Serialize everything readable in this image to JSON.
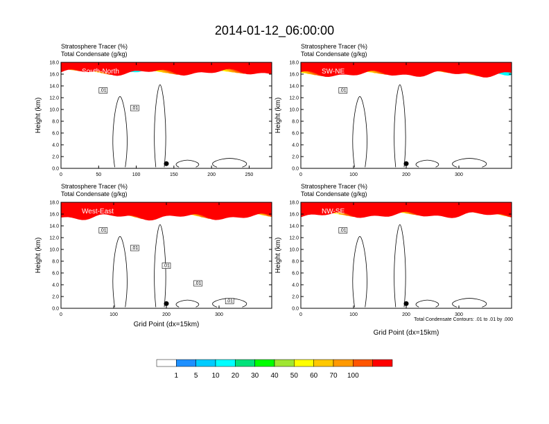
{
  "figure": {
    "title": "2014-01-12_06:00:00",
    "colorbar": {
      "colors": [
        "#ffffff",
        "#1e90ff",
        "#00ccff",
        "#00ffff",
        "#00e27a",
        "#00ff00",
        "#a0e632",
        "#ffff00",
        "#ffc800",
        "#ff9900",
        "#ff5500",
        "#ff0000"
      ],
      "labels": [
        "1",
        "5",
        "10",
        "20",
        "30",
        "40",
        "50",
        "60",
        "70",
        "100"
      ]
    },
    "contour_note": "Total Condensate Contours: .01 to .01 by .000"
  },
  "chart_data": [
    {
      "type": "heatmap",
      "title_line1": "Stratosphere Tracer   (%)",
      "title_line2": "Total Condensate   (g/kg)",
      "region_label": "South-North",
      "ylabel": "Height (km)",
      "xlabel": "",
      "xlim": [
        0,
        280
      ],
      "ylim": [
        0,
        18
      ],
      "xticks": [
        0,
        50,
        100,
        150,
        200,
        250
      ],
      "yticks": [
        "0.0",
        "2.0",
        "4.0",
        "6.0",
        "8.0",
        "10.0",
        "12.0",
        "14.0",
        "16.0",
        "18.0"
      ],
      "contour_labels": [
        ".01",
        ".01"
      ],
      "tracer_base_km": 16.3,
      "marker_x": 140
    },
    {
      "type": "heatmap",
      "title_line1": "Stratosphere Tracer   (%)",
      "title_line2": "Total Condensate   (g/kg)",
      "region_label": "SW-NE",
      "ylabel": "Height (km)",
      "xlabel": "",
      "xlim": [
        0,
        400
      ],
      "ylim": [
        0,
        18
      ],
      "xticks": [
        0,
        100,
        200,
        300
      ],
      "yticks": [
        "0.0",
        "2.0",
        "4.0",
        "6.0",
        "8.0",
        "10.0",
        "12.0",
        "14.0",
        "16.0",
        "18.0"
      ],
      "contour_labels": [
        ".01"
      ],
      "tracer_base_km": 16.0,
      "marker_x": 200
    },
    {
      "type": "heatmap",
      "title_line1": "Stratosphere Tracer   (%)",
      "title_line2": "Total Condensate   (g/kg)",
      "region_label": "West-East",
      "ylabel": "Height (km)",
      "xlabel": "Grid Point (dx=15km)",
      "xlim": [
        0,
        400
      ],
      "ylim": [
        0,
        18
      ],
      "xticks": [
        0,
        100,
        200,
        300
      ],
      "yticks": [
        "0.0",
        "2.0",
        "4.0",
        "6.0",
        "8.0",
        "10.0",
        "12.0",
        "14.0",
        "16.0",
        "18.0"
      ],
      "contour_labels": [
        ".01",
        ".01",
        ".01",
        ".01",
        ".01"
      ],
      "tracer_base_km": 15.5,
      "marker_x": 200
    },
    {
      "type": "heatmap",
      "title_line1": "Stratosphere Tracer   (%)",
      "title_line2": "Total Condensate   (g/kg)",
      "region_label": "NW-SE",
      "ylabel": "Height (km)",
      "xlabel": "Grid Point (dx=15km)",
      "xlim": [
        0,
        400
      ],
      "ylim": [
        0,
        18
      ],
      "xticks": [
        0,
        100,
        200,
        300
      ],
      "yticks": [
        "0.0",
        "2.0",
        "4.0",
        "6.0",
        "8.0",
        "10.0",
        "12.0",
        "14.0",
        "16.0",
        "18.0"
      ],
      "contour_labels": [
        ".01"
      ],
      "tracer_base_km": 15.8,
      "marker_x": 200
    }
  ]
}
